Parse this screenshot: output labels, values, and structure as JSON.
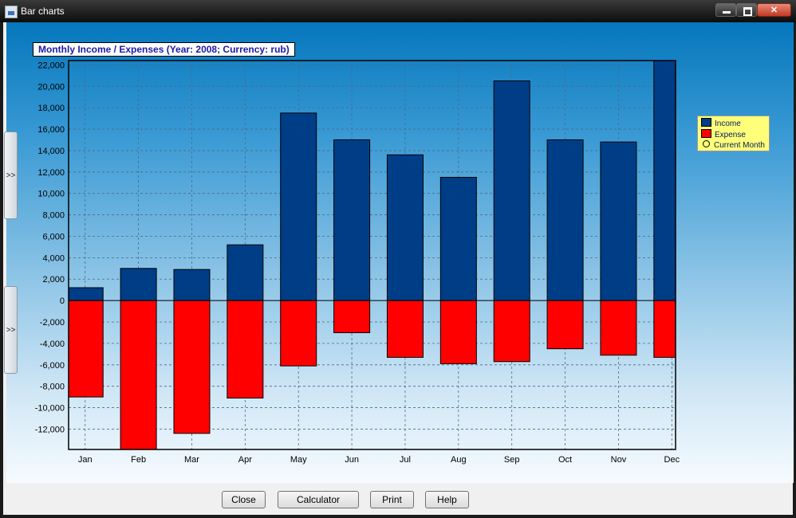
{
  "window": {
    "title": "Bar charts"
  },
  "side_tabs": [
    ">>",
    ">>"
  ],
  "legend": {
    "income": "Income",
    "expense": "Expense",
    "current_month": "Current Month"
  },
  "buttons": {
    "close": "Close",
    "calculator": "Calculator",
    "print": "Print",
    "help": "Help"
  },
  "colors": {
    "income": "#003d87",
    "expense": "#ff0000",
    "legend_bg": "#ffff7a",
    "title_text": "#1a1aa8"
  },
  "chart_data": {
    "type": "bar",
    "title": "Monthly Income / Expenses (Year: 2008; Currency: rub)",
    "categories": [
      "Jan",
      "Feb",
      "Mar",
      "Apr",
      "May",
      "Jun",
      "Jul",
      "Aug",
      "Sep",
      "Oct",
      "Nov",
      "Dec"
    ],
    "series": [
      {
        "name": "Income",
        "values": [
          1200,
          3000,
          2900,
          5200,
          17500,
          15000,
          13600,
          11500,
          20500,
          15000,
          14800,
          22400
        ]
      },
      {
        "name": "Expense",
        "values": [
          -9000,
          -13900,
          -12400,
          -9100,
          -6100,
          -3000,
          -5300,
          -5900,
          -5700,
          -4500,
          -5100,
          -5300
        ]
      }
    ],
    "ylim": [
      -13900,
      22400
    ],
    "yticks": [
      22000,
      20000,
      18000,
      16000,
      14000,
      12000,
      10000,
      8000,
      6000,
      4000,
      2000,
      0,
      -2000,
      -4000,
      -6000,
      -8000,
      -10000,
      -12000
    ],
    "ytick_labels": [
      "22,000",
      "20,000",
      "18,000",
      "16,000",
      "14,000",
      "12,000",
      "10,000",
      "8,000",
      "6,000",
      "4,000",
      "2,000",
      "0",
      "-2,000",
      "-4,000",
      "-6,000",
      "-8,000",
      "-10,000",
      "-12,000"
    ],
    "grid": true,
    "legend_position": "right"
  }
}
